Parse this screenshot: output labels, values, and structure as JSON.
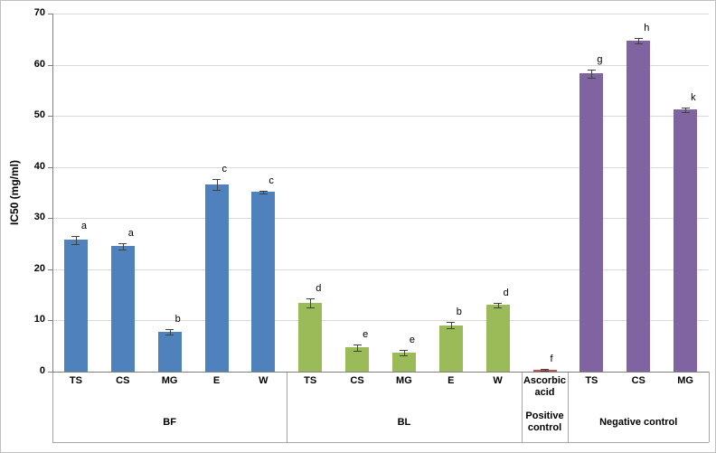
{
  "chart_data": {
    "type": "bar",
    "title": "",
    "xlabel": "",
    "ylabel": "IC50 (mg/ml)",
    "ylim": [
      0,
      70
    ],
    "ytick_step": 10,
    "yticks": [
      0,
      10,
      20,
      30,
      40,
      50,
      60,
      70
    ],
    "grid": true,
    "legend": "none",
    "error_bars": true,
    "groups": [
      {
        "label": "BF",
        "color": "#4f81bd",
        "bars": [
          {
            "category": "TS",
            "value": 25.8,
            "error": 0.8,
            "letter": "a"
          },
          {
            "category": "CS",
            "value": 24.5,
            "error": 0.6,
            "letter": "a"
          },
          {
            "category": "MG",
            "value": 7.8,
            "error": 0.5,
            "letter": "b"
          },
          {
            "category": "E",
            "value": 36.6,
            "error": 1.0,
            "letter": "c"
          },
          {
            "category": "W",
            "value": 35.1,
            "error": 0.3,
            "letter": "c"
          }
        ]
      },
      {
        "label": "BL",
        "color": "#9bbb59",
        "bars": [
          {
            "category": "TS",
            "value": 13.4,
            "error": 0.9,
            "letter": "d"
          },
          {
            "category": "CS",
            "value": 4.7,
            "error": 0.6,
            "letter": "e"
          },
          {
            "category": "MG",
            "value": 3.7,
            "error": 0.5,
            "letter": "e"
          },
          {
            "category": "E",
            "value": 9.1,
            "error": 0.6,
            "letter": "b"
          },
          {
            "category": "W",
            "value": 13.0,
            "error": 0.5,
            "letter": "d"
          }
        ]
      },
      {
        "label": "Positive control",
        "color": "#c0504d",
        "bars": [
          {
            "category": "Ascorbic acid",
            "value": 0.3,
            "error": 0.15,
            "letter": "f"
          }
        ]
      },
      {
        "label": "Negative control",
        "color": "#8064a2",
        "bars": [
          {
            "category": "TS",
            "value": 58.3,
            "error": 0.8,
            "letter": "g"
          },
          {
            "category": "CS",
            "value": 64.7,
            "error": 0.6,
            "letter": "h"
          },
          {
            "category": "MG",
            "value": 51.2,
            "error": 0.4,
            "letter": "k"
          }
        ]
      }
    ]
  }
}
